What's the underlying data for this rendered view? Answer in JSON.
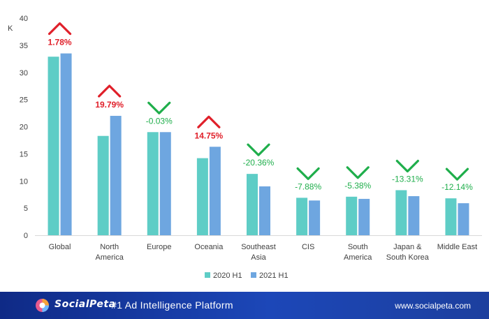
{
  "chart_data": {
    "type": "bar",
    "title": "",
    "xlabel": "",
    "ylabel": "K",
    "ylim": [
      0,
      40
    ],
    "yticks": [
      0,
      5,
      10,
      15,
      20,
      25,
      30,
      35,
      40
    ],
    "categories": [
      [
        "Global"
      ],
      [
        "North",
        "America"
      ],
      [
        "Europe"
      ],
      [
        "Oceania"
      ],
      [
        "Southeast",
        "Asia"
      ],
      [
        "CIS"
      ],
      [
        "South",
        "America"
      ],
      [
        "Japan &",
        "South Korea"
      ],
      [
        "Middle East"
      ]
    ],
    "series": [
      {
        "name": "2020 H1",
        "color": "#5ecdc6",
        "values": [
          32.9,
          18.3,
          19.0,
          14.2,
          11.3,
          6.9,
          7.1,
          8.3,
          6.8
        ]
      },
      {
        "name": "2021 H1",
        "color": "#6ea6e0",
        "values": [
          33.5,
          22.0,
          19.0,
          16.3,
          9.0,
          6.4,
          6.7,
          7.2,
          5.9
        ]
      }
    ],
    "changes": [
      {
        "label": "1.78%",
        "direction": "up"
      },
      {
        "label": "19.79%",
        "direction": "up"
      },
      {
        "label": "-0.03%",
        "direction": "down"
      },
      {
        "label": "14.75%",
        "direction": "up"
      },
      {
        "label": "-20.36%",
        "direction": "down"
      },
      {
        "label": "-7.88%",
        "direction": "down"
      },
      {
        "label": "-5.38%",
        "direction": "down"
      },
      {
        "label": "-13.31%",
        "direction": "down"
      },
      {
        "label": "-12.14%",
        "direction": "down"
      }
    ],
    "change_colors": {
      "up": "#e0202a",
      "down": "#1fae4b"
    },
    "grid": false,
    "legend_position": "bottom"
  },
  "footer": {
    "brand": "SocialPeta",
    "tagline": "- #1 Ad Intelligence Platform",
    "url": "www.socialpeta.com",
    "icon": "socialpeta-logo-icon"
  }
}
